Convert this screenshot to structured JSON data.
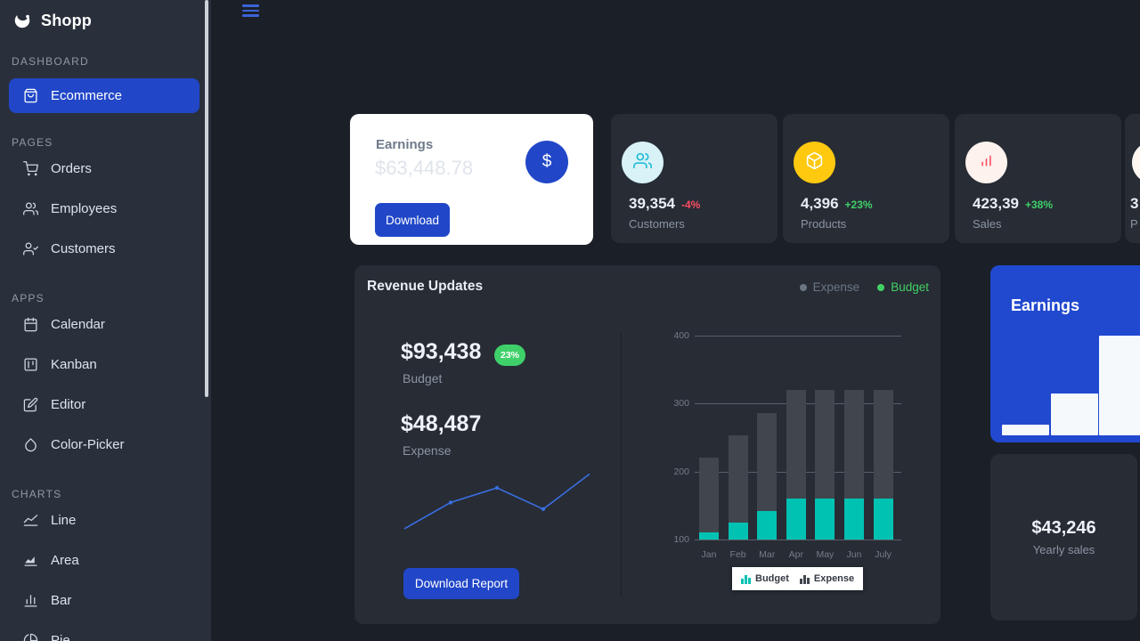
{
  "app": {
    "name": "Shopp",
    "logo_icon": "g-crescent-logo-icon"
  },
  "topbar": {
    "menu_icon": "hamburger-icon"
  },
  "sidebar": {
    "sections": [
      {
        "label": "DASHBOARD",
        "items": [
          {
            "label": "Ecommerce",
            "icon": "shopping-bag-icon",
            "active": true
          }
        ]
      },
      {
        "label": "PAGES",
        "items": [
          {
            "label": "Orders",
            "icon": "shopping-cart-icon"
          },
          {
            "label": "Employees",
            "icon": "users-icon"
          },
          {
            "label": "Customers",
            "icon": "user-check-icon"
          }
        ]
      },
      {
        "label": "APPS",
        "items": [
          {
            "label": "Calendar",
            "icon": "calendar-icon"
          },
          {
            "label": "Kanban",
            "icon": "kanban-icon"
          },
          {
            "label": "Editor",
            "icon": "edit-icon"
          },
          {
            "label": "Color-Picker",
            "icon": "droplet-icon"
          }
        ]
      },
      {
        "label": "CHARTS",
        "items": [
          {
            "label": "Line",
            "icon": "line-chart-icon"
          },
          {
            "label": "Area",
            "icon": "area-chart-icon"
          },
          {
            "label": "Bar",
            "icon": "bar-chart-icon"
          },
          {
            "label": "Pie",
            "icon": "pie-chart-icon"
          }
        ]
      }
    ]
  },
  "earnings_card": {
    "title": "Earnings",
    "amount": "$63,448.78",
    "currency_icon": "dollar-icon",
    "currency_symbol": "$",
    "button_label": "Download"
  },
  "stat_cards": [
    {
      "value": "39,354",
      "delta": "-4%",
      "delta_color": "#fb4d60",
      "label": "Customers",
      "icon": "users-icon",
      "icon_color": "#17b9d4",
      "icon_bg": "#d8f2f8"
    },
    {
      "value": "4,396",
      "delta": "+23%",
      "delta_color": "#3fd06a",
      "label": "Products",
      "icon": "package-icon",
      "icon_color": "#ffffff",
      "icon_bg": "#fec90f"
    },
    {
      "value": "423,39",
      "delta": "+38%",
      "delta_color": "#3fd06a",
      "label": "Sales",
      "icon": "bar-chart-ascending-icon",
      "icon_color": "#fb4d60",
      "icon_bg": "#fdf2ee"
    },
    {
      "value": "3",
      "delta": "",
      "delta_color": "#3fd06a",
      "label": "P",
      "icon": "none",
      "icon_color": "#fb4d60",
      "icon_bg": "#fdf6f1",
      "note": "card clipped by right viewport edge"
    }
  ],
  "revenue_card": {
    "title": "Revenue Updates",
    "header_legend": [
      {
        "label": "Expense",
        "color": "#6b7684"
      },
      {
        "label": "Budget",
        "color": "#43d165"
      }
    ],
    "budget": {
      "amount": "$93,438",
      "badge": "23%",
      "label": "Budget"
    },
    "expense": {
      "amount": "$48,487",
      "label": "Expense"
    },
    "button_label": "Download Report",
    "bottom_legend": [
      {
        "label": "Budget",
        "color": "#00c2b2"
      },
      {
        "label": "Expense",
        "color": "#40454e"
      }
    ]
  },
  "earnings_panel": {
    "title": "Earnings"
  },
  "yearly_card": {
    "amount": "$43,246",
    "label": "Yearly sales"
  },
  "colors": {
    "accent_blue": "#2147c8",
    "teal": "#00c2b2",
    "green": "#3fd06a",
    "red": "#fb4d60",
    "card_bg": "#272c35",
    "page_bg": "#1b1f27",
    "sidebar_bg": "#2a303b"
  },
  "chart_data": [
    {
      "id": "revenue-updates-columns",
      "type": "bar",
      "stacked": true,
      "categories": [
        "Jan",
        "Feb",
        "Mar",
        "Apr",
        "May",
        "Jun",
        "July"
      ],
      "series": [
        {
          "name": "Budget",
          "color": "#00c2b2",
          "values": [
            110,
            125,
            142,
            160,
            160,
            160,
            160
          ]
        },
        {
          "name": "Expense",
          "color": "#40454e",
          "values": [
            221,
            253,
            286,
            320,
            320,
            320,
            320
          ]
        }
      ],
      "note": "values are cumulative stack tops read from the y-axis; Budget segment rises from the 100 baseline, Expense is stacked on top of Budget",
      "ylim": [
        100,
        400
      ],
      "yticks": [
        100,
        200,
        300,
        400
      ],
      "grid": true,
      "legend_position": "bottom"
    },
    {
      "id": "budget-expense-sparkline",
      "type": "line",
      "x": [
        1,
        2,
        3,
        4,
        5
      ],
      "values": [
        5,
        41,
        61,
        32,
        80
      ],
      "color": "#3a6ee0",
      "note": "unlabeled trend sparkline, relative units"
    },
    {
      "id": "earnings-mini-bars",
      "type": "bar",
      "values": [
        12,
        47,
        112
      ],
      "color": "#f5f9fc",
      "note": "white ascending bars inside blue Earnings card, rightmost bar clipped by viewport"
    }
  ]
}
